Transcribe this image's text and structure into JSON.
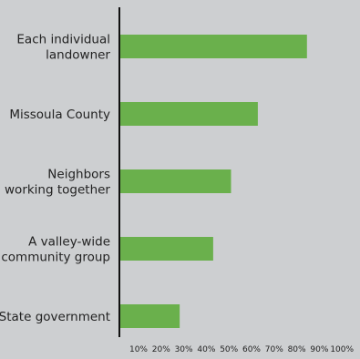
{
  "chart_data": {
    "type": "bar",
    "orientation": "horizontal",
    "categories": [
      [
        "Each individual",
        "landowner"
      ],
      [
        "Missoula County"
      ],
      [
        "Neighbors",
        "working together"
      ],
      [
        "A valley-wide",
        "community group"
      ],
      [
        "State government"
      ]
    ],
    "values": [
      84,
      62,
      50,
      42,
      27
    ],
    "xlim": [
      0,
      100
    ],
    "x_ticks": [
      "10%",
      "20%",
      "30%",
      "40%",
      "50%",
      "60%",
      "70%",
      "80%",
      "90%",
      "100%"
    ],
    "grid": false,
    "bar_color": "#6ab04c",
    "background_color": "#cdcfd1",
    "axis_color": "#111111"
  }
}
